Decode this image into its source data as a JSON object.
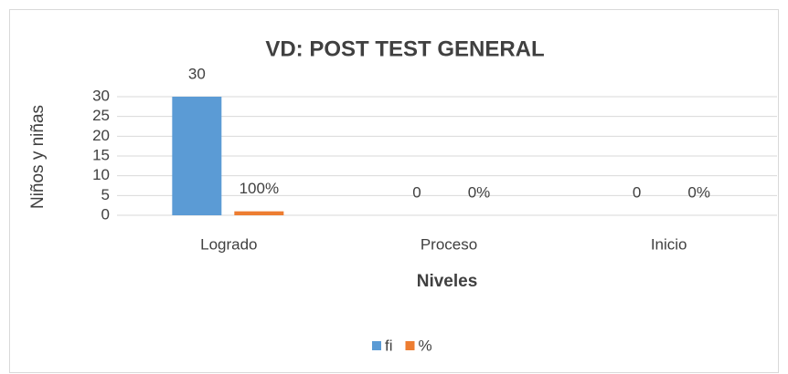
{
  "chart_data": {
    "type": "bar",
    "title": "VD: POST TEST GENERAL",
    "y_label": "Niños y niñas",
    "x_label": "Niveles",
    "categories": [
      "Logrado",
      "Proceso",
      "Inicio"
    ],
    "series": [
      {
        "name": "fi",
        "color": "#5b9bd5",
        "values": [
          30,
          0,
          0
        ]
      },
      {
        "name": "%",
        "color": "#ed7d31",
        "values": [
          1,
          0,
          0
        ],
        "value_labels": [
          "100%",
          "0%",
          "0%"
        ]
      }
    ],
    "ylim": [
      0,
      30
    ],
    "yticks": [
      0,
      5,
      10,
      15,
      20,
      25,
      30
    ],
    "grid": true,
    "legend": "bottom"
  }
}
